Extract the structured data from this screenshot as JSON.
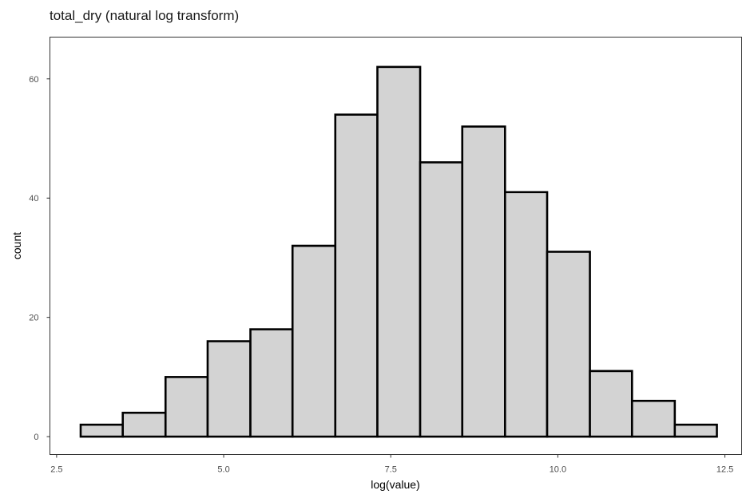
{
  "chart_data": {
    "type": "bar",
    "title": "total_dry (natural log transform)",
    "xlabel": "log(value)",
    "ylabel": "count",
    "xlim": [
      2.4,
      12.75
    ],
    "ylim": [
      -3,
      67
    ],
    "x_ticks": [
      {
        "value": 2.5,
        "label": "2.5"
      },
      {
        "value": 5.0,
        "label": "5.0"
      },
      {
        "value": 7.5,
        "label": "7.5"
      },
      {
        "value": 10.0,
        "label": "10.0"
      },
      {
        "value": 12.5,
        "label": "12.5"
      }
    ],
    "y_ticks": [
      {
        "value": 0,
        "label": "0"
      },
      {
        "value": 20,
        "label": "20"
      },
      {
        "value": 40,
        "label": "40"
      },
      {
        "value": 60,
        "label": "60"
      }
    ],
    "bin_edges": [
      2.86,
      3.49,
      4.13,
      4.76,
      5.4,
      6.03,
      6.67,
      7.3,
      7.94,
      8.57,
      9.21,
      9.84,
      10.48,
      11.11,
      11.75,
      12.38
    ],
    "values": [
      2,
      4,
      10,
      16,
      18,
      32,
      54,
      62,
      46,
      52,
      41,
      31,
      11,
      6,
      2
    ],
    "bar_fill": "#d3d3d3",
    "bar_stroke": "#000000",
    "grid": false,
    "panel_border": true
  }
}
